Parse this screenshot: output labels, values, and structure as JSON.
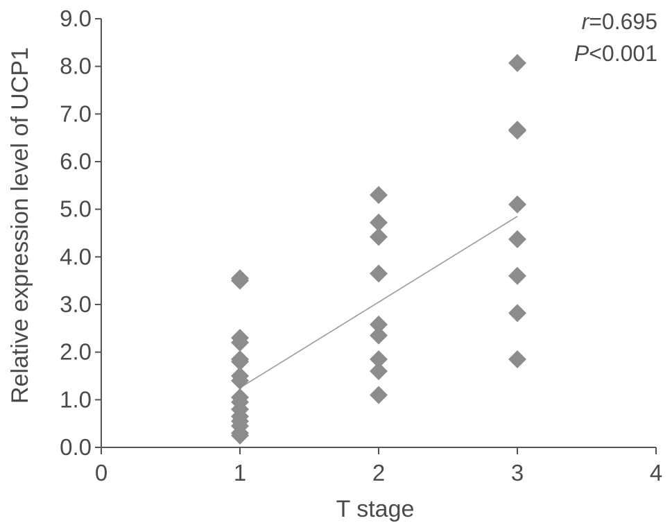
{
  "chart_data": {
    "type": "scatter",
    "xlabel": "T stage",
    "ylabel": "Relative expression level of UCP1",
    "xlim": [
      0,
      4
    ],
    "ylim": [
      0,
      9
    ],
    "x_ticks": [
      "0",
      "1",
      "2",
      "3",
      "4"
    ],
    "y_ticks": [
      "0.0",
      "1.0",
      "2.0",
      "3.0",
      "4.0",
      "5.0",
      "6.0",
      "7.0",
      "8.0",
      "9.0"
    ],
    "grid": false,
    "annotations": {
      "r_symbol": "r",
      "r_value": "=0.695",
      "p_symbol": "P",
      "p_value": "<0.001"
    },
    "series": [
      {
        "points": [
          {
            "x": 1,
            "y": 3.55
          },
          {
            "x": 1,
            "y": 3.5
          },
          {
            "x": 1,
            "y": 2.3
          },
          {
            "x": 1,
            "y": 2.2
          },
          {
            "x": 1,
            "y": 1.85
          },
          {
            "x": 1,
            "y": 1.8
          },
          {
            "x": 1,
            "y": 1.5
          },
          {
            "x": 1,
            "y": 1.4
          },
          {
            "x": 1,
            "y": 1.05
          },
          {
            "x": 1,
            "y": 0.95
          },
          {
            "x": 1,
            "y": 0.8
          },
          {
            "x": 1,
            "y": 0.65
          },
          {
            "x": 1,
            "y": 0.55
          },
          {
            "x": 1,
            "y": 0.45
          },
          {
            "x": 1,
            "y": 0.3
          },
          {
            "x": 1,
            "y": 0.25
          },
          {
            "x": 2,
            "y": 5.3
          },
          {
            "x": 2,
            "y": 4.72
          },
          {
            "x": 2,
            "y": 4.42
          },
          {
            "x": 2,
            "y": 3.65
          },
          {
            "x": 2,
            "y": 2.58
          },
          {
            "x": 2,
            "y": 2.35
          },
          {
            "x": 2,
            "y": 1.85
          },
          {
            "x": 2,
            "y": 1.6
          },
          {
            "x": 2,
            "y": 1.1
          },
          {
            "x": 3,
            "y": 8.07
          },
          {
            "x": 3,
            "y": 6.67
          },
          {
            "x": 3,
            "y": 6.65
          },
          {
            "x": 3,
            "y": 5.1
          },
          {
            "x": 3,
            "y": 4.37
          },
          {
            "x": 3,
            "y": 3.6
          },
          {
            "x": 3,
            "y": 2.82
          },
          {
            "x": 3,
            "y": 1.85
          }
        ],
        "color": "#8c8c8c"
      }
    ],
    "trendline": {
      "x": [
        1,
        3
      ],
      "y": [
        1.25,
        4.85
      ],
      "color": "#9a9a9a"
    }
  }
}
